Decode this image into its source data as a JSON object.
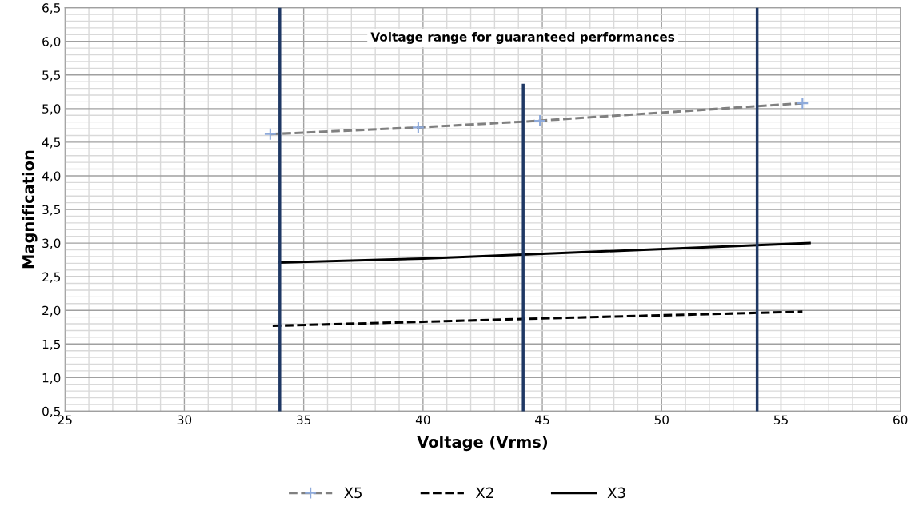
{
  "chart_data": {
    "type": "line",
    "xlabel": "Voltage (Vrms)",
    "ylabel": "Magnification",
    "series": [
      {
        "name": "X5",
        "color": "#808080",
        "x": [
          33.6,
          39.8,
          44.9,
          55.9
        ],
        "values": [
          4.62,
          4.72,
          4.82,
          5.08
        ],
        "line_style": "dashed",
        "marker": "cross"
      },
      {
        "name": "X2",
        "color": "#000000",
        "x": [
          33.7,
          40,
          45,
          55.9
        ],
        "values": [
          1.77,
          1.83,
          1.88,
          1.98
        ],
        "line_style": "dashed",
        "marker": "none"
      },
      {
        "name": "X3",
        "color": "#000000",
        "x": [
          34,
          40,
          45,
          56.2
        ],
        "values": [
          2.71,
          2.77,
          2.84,
          3.0
        ],
        "line_style": "solid",
        "marker": "none"
      },
      {
        "color": "#1f3864",
        "x": [
          44.2,
          44.2
        ],
        "values": [
          0.5,
          5.35
        ],
        "line_style": "solid",
        "marker": "none"
      }
    ],
    "ref_lines": [
      {
        "axis": "x",
        "value": 34,
        "color": "#1f3864"
      },
      {
        "axis": "x",
        "value": 54,
        "color": "#1f3864"
      }
    ],
    "annotations": [
      "Voltage range for guaranteed performances"
    ],
    "xlim": [
      25,
      60
    ],
    "xticks": [
      25,
      30,
      35,
      40,
      45,
      50,
      55,
      60
    ],
    "ylim": [
      0.5,
      6.5
    ],
    "yticks": [
      {
        "value": 0.5,
        "label": "0,5"
      },
      {
        "value": 1.0,
        "label": "1,0"
      },
      {
        "value": 1.5,
        "label": "1,5"
      },
      {
        "value": 2.0,
        "label": "2,0"
      },
      {
        "value": 2.5,
        "label": "2,5"
      },
      {
        "value": 3.0,
        "label": "3,0"
      },
      {
        "value": 3.5,
        "label": "3,5"
      },
      {
        "value": 4.0,
        "label": "4,0"
      },
      {
        "value": 4.5,
        "label": "4,5"
      },
      {
        "value": 5.0,
        "label": "5,0"
      },
      {
        "value": 5.5,
        "label": "5,5"
      },
      {
        "value": 6.0,
        "label": "6,0"
      },
      {
        "value": 6.5,
        "label": "6,5"
      }
    ],
    "grid": true,
    "legend": "bottom"
  }
}
